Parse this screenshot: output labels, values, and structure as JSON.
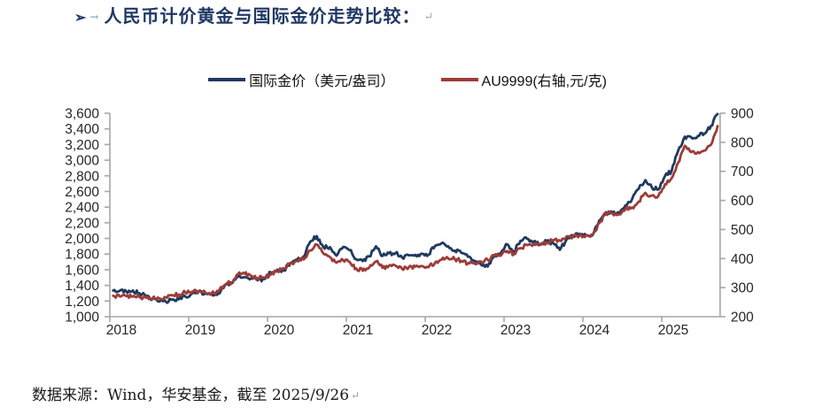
{
  "title": {
    "bullet": "➢",
    "tab_mark": "→",
    "text": "人民币计价黄金与国际金价走势比较：",
    "return_mark": "↵"
  },
  "source": {
    "text": "数据来源：Wind，华安基金，截至 2025/9/26",
    "return_mark": "↵"
  },
  "colors": {
    "intl_gold": "#1f3a5f",
    "au9999": "#9d3c38",
    "title": "#1f3864",
    "axis_line": "#a6a6a6",
    "tick_label": "#262626"
  },
  "chart_data": {
    "type": "line",
    "title": "人民币计价黄金与国际金价走势比较",
    "grid": false,
    "legend_position": "top",
    "x_unit": "month",
    "x_start_label": "2018-01",
    "x_end_label": "2025-09",
    "x_tick_labels": [
      "2018",
      "2019",
      "2020",
      "2021",
      "2022",
      "2023",
      "2024",
      "2025"
    ],
    "left_axis": {
      "label": "国际金价（美元/盎司）",
      "min": 1000,
      "max": 3600,
      "tick_step": 200,
      "tick_labels": [
        "3,600",
        "3,400",
        "3,200",
        "3,000",
        "2,800",
        "2,600",
        "2,400",
        "2,200",
        "2,000",
        "1,800",
        "1,600",
        "1,400",
        "1,200",
        "1,000"
      ]
    },
    "right_axis": {
      "label": "AU9999（元/克）",
      "min": 200,
      "max": 900,
      "tick_step": 100,
      "tick_labels": [
        "900",
        "800",
        "700",
        "600",
        "500",
        "400",
        "300",
        "200"
      ]
    },
    "series": [
      {
        "name": "国际金价（美元/盎司）",
        "axis": "left",
        "color": "#1f3a5f",
        "values": [
          1335,
          1330,
          1325,
          1335,
          1300,
          1270,
          1225,
          1195,
          1195,
          1220,
          1222,
          1255,
          1295,
          1318,
          1300,
          1285,
          1295,
          1400,
          1425,
          1510,
          1505,
          1490,
          1465,
          1480,
          1565,
          1600,
          1590,
          1690,
          1730,
          1770,
          1960,
          2030,
          1890,
          1890,
          1780,
          1890,
          1850,
          1735,
          1710,
          1770,
          1900,
          1775,
          1810,
          1815,
          1755,
          1785,
          1790,
          1805,
          1795,
          1905,
          1940,
          1900,
          1845,
          1815,
          1765,
          1715,
          1665,
          1640,
          1770,
          1815,
          1925,
          1830,
          1970,
          1995,
          1960,
          1920,
          1965,
          1940,
          1855,
          1985,
          2035,
          2060,
          2040,
          2045,
          2230,
          2335,
          2330,
          2325,
          2425,
          2505,
          2635,
          2745,
          2650,
          2625,
          2800,
          2860,
          3120,
          3300,
          3290,
          3310,
          3340,
          3440,
          3590
        ]
      },
      {
        "name": "AU9999(右轴,元/克)",
        "axis": "right",
        "color": "#9d3c38",
        "values": [
          272,
          270,
          271,
          270,
          268,
          265,
          263,
          263,
          267,
          273,
          276,
          283,
          286,
          288,
          284,
          282,
          286,
          310,
          318,
          346,
          348,
          340,
          333,
          335,
          345,
          356,
          366,
          383,
          392,
          397,
          428,
          448,
          418,
          405,
          386,
          395,
          388,
          366,
          358,
          370,
          390,
          368,
          376,
          375,
          364,
          370,
          372,
          374,
          370,
          386,
          396,
          400,
          398,
          392,
          384,
          383,
          390,
          396,
          410,
          410,
          426,
          415,
          436,
          446,
          450,
          450,
          456,
          462,
          462,
          476,
          476,
          480,
          480,
          482,
          522,
          556,
          556,
          552,
          570,
          576,
          596,
          626,
          616,
          616,
          656,
          676,
          730,
          788,
          766,
          766,
          772,
          792,
          856
        ]
      }
    ]
  }
}
